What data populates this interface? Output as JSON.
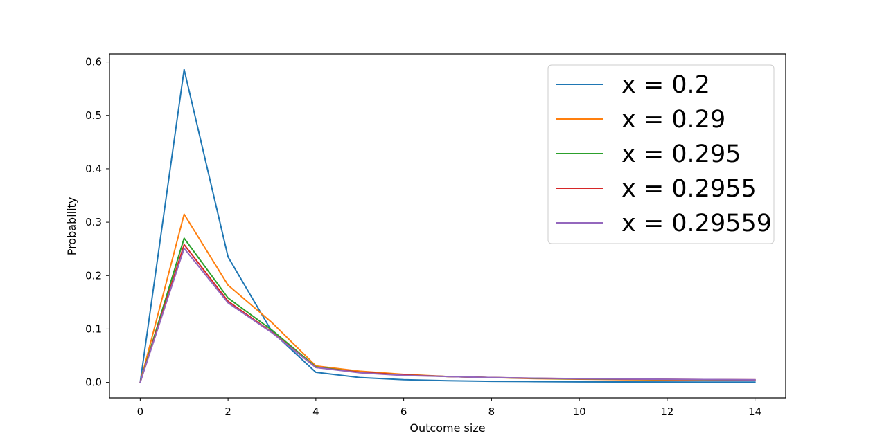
{
  "chart_data": {
    "type": "line",
    "title": "",
    "xlabel": "Outcome size",
    "ylabel": "Probability",
    "xlim": [
      -0.7,
      14.7
    ],
    "ylim": [
      -0.029,
      0.615
    ],
    "x_ticks": [
      0,
      2,
      4,
      6,
      8,
      10,
      12,
      14
    ],
    "y_ticks": [
      0.0,
      0.1,
      0.2,
      0.3,
      0.4,
      0.5,
      0.6
    ],
    "grid": false,
    "legend_position": "top-right",
    "x": [
      0,
      1,
      2,
      3,
      4,
      5,
      6,
      7,
      8,
      9,
      10,
      11,
      12,
      13,
      14
    ],
    "series": [
      {
        "name": "x = 0.2",
        "color": "#1f77b4",
        "values": [
          0.0,
          0.586,
          0.235,
          0.095,
          0.019,
          0.009,
          0.005,
          0.003,
          0.002,
          0.0015,
          0.001,
          0.0008,
          0.0006,
          0.0005,
          0.0004
        ]
      },
      {
        "name": "x = 0.29",
        "color": "#ff7f0e",
        "values": [
          0.0,
          0.315,
          0.182,
          0.112,
          0.031,
          0.021,
          0.015,
          0.011,
          0.009,
          0.007,
          0.006,
          0.005,
          0.0045,
          0.004,
          0.0035
        ]
      },
      {
        "name": "x = 0.295",
        "color": "#2ca02c",
        "values": [
          0.0,
          0.27,
          0.158,
          0.098,
          0.029,
          0.019,
          0.014,
          0.011,
          0.009,
          0.0075,
          0.0065,
          0.006,
          0.0055,
          0.005,
          0.0045
        ]
      },
      {
        "name": "x = 0.2955",
        "color": "#d62728",
        "values": [
          0.0,
          0.258,
          0.152,
          0.094,
          0.028,
          0.019,
          0.014,
          0.011,
          0.009,
          0.0078,
          0.0068,
          0.0062,
          0.0057,
          0.0052,
          0.0048
        ]
      },
      {
        "name": "x = 0.29559",
        "color": "#9467bd",
        "values": [
          0.0,
          0.251,
          0.149,
          0.093,
          0.028,
          0.018,
          0.013,
          0.011,
          0.009,
          0.008,
          0.007,
          0.0063,
          0.0058,
          0.0053,
          0.0049
        ]
      }
    ]
  }
}
